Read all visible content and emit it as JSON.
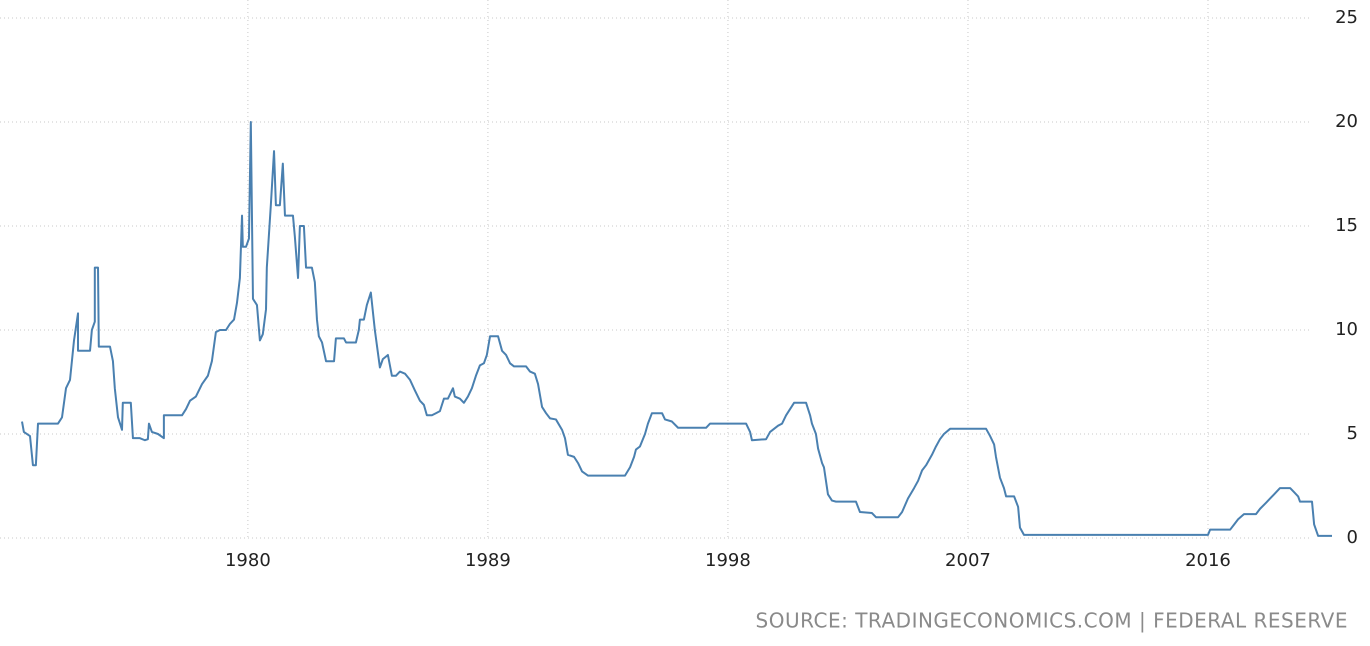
{
  "chart_data": {
    "type": "line",
    "color": "#4a80b0",
    "grid": true,
    "source": "SOURCE: TRADINGECONOMICS.COM | FEDERAL RESERVE",
    "xlim": [
      1971.53,
      2020.65
    ],
    "xticks": [
      1980,
      1989,
      1998,
      2007,
      2016
    ],
    "ylim": [
      0,
      25
    ],
    "yticks": [
      0,
      5,
      10,
      15,
      20,
      25
    ],
    "x": [
      1971.53,
      1971.6,
      1971.83,
      1971.94,
      1972.05,
      1972.13,
      1972.88,
      1973.03,
      1973.18,
      1973.33,
      1973.48,
      1973.63,
      1973.63,
      1974.08,
      1974.15,
      1974.26,
      1974.26,
      1974.38,
      1974.41,
      1974.83,
      1974.94,
      1975.01,
      1975.13,
      1975.28,
      1975.31,
      1975.61,
      1975.69,
      1975.95,
      1976.14,
      1976.25,
      1976.29,
      1976.4,
      1976.63,
      1976.85,
      1976.85,
      1977.53,
      1977.68,
      1977.83,
      1978.05,
      1978.28,
      1978.5,
      1978.65,
      1978.8,
      1978.95,
      1979.18,
      1979.33,
      1979.48,
      1979.59,
      1979.7,
      1979.78,
      1979.81,
      1979.93,
      1980.04,
      1980.11,
      1980.19,
      1980.34,
      1980.45,
      1980.56,
      1980.68,
      1980.71,
      1980.86,
      1980.98,
      1981.05,
      1981.2,
      1981.31,
      1981.39,
      1981.69,
      1981.76,
      1981.88,
      1981.95,
      1982.1,
      1982.18,
      1982.4,
      1982.51,
      1982.59,
      1982.66,
      1982.78,
      1982.93,
      1983.23,
      1983.3,
      1983.6,
      1983.68,
      1984.05,
      1984.16,
      1984.2,
      1984.35,
      1984.46,
      1984.61,
      1984.76,
      1984.95,
      1985.06,
      1985.25,
      1985.4,
      1985.55,
      1985.7,
      1985.89,
      1986.08,
      1986.26,
      1986.45,
      1986.6,
      1986.71,
      1986.9,
      1987.05,
      1987.2,
      1987.35,
      1987.5,
      1987.69,
      1987.76,
      1987.95,
      1988.1,
      1988.25,
      1988.4,
      1988.55,
      1988.7,
      1988.85,
      1988.96,
      1989.08,
      1989.38,
      1989.53,
      1989.68,
      1989.83,
      1989.98,
      1990.43,
      1990.58,
      1990.76,
      1990.88,
      1991.03,
      1991.18,
      1991.33,
      1991.55,
      1991.78,
      1991.89,
      1992.0,
      1992.23,
      1992.38,
      1992.53,
      1992.75,
      1994.14,
      1994.33,
      1994.48,
      1994.55,
      1994.7,
      1994.89,
      1995.0,
      1995.15,
      1995.53,
      1995.64,
      1995.9,
      1996.13,
      1997.18,
      1997.33,
      1998.68,
      1998.83,
      1998.9,
      1999.43,
      1999.58,
      1999.88,
      2000.03,
      2000.18,
      2000.33,
      2000.48,
      2000.93,
      2001.08,
      2001.15,
      2001.3,
      2001.38,
      2001.53,
      2001.6,
      2001.75,
      2001.9,
      2002.05,
      2002.8,
      2002.95,
      2003.4,
      2003.55,
      2004.38,
      2004.53,
      2004.75,
      2004.98,
      2005.13,
      2005.28,
      2005.43,
      2005.65,
      2005.8,
      2005.95,
      2006.1,
      2006.33,
      2007.68,
      2007.83,
      2007.98,
      2008.05,
      2008.2,
      2008.35,
      2008.43,
      2008.73,
      2008.88,
      2008.95,
      2009.1,
      2016.0,
      2016.08,
      2016.83,
      2016.98,
      2017.13,
      2017.35,
      2017.8,
      2017.95,
      2018.18,
      2018.33,
      2018.48,
      2018.7,
      2019.08,
      2019.23,
      2019.38,
      2019.45,
      2019.9,
      2019.98,
      2020.13,
      2020.65
    ],
    "values": [
      5.6,
      5.1,
      4.9,
      3.5,
      3.5,
      5.5,
      5.5,
      5.8,
      7.2,
      7.6,
      9.5,
      10.8,
      9.0,
      9.0,
      10.0,
      10.4,
      13.0,
      13.0,
      9.2,
      9.2,
      8.5,
      7.2,
      5.8,
      5.2,
      6.5,
      6.5,
      4.8,
      4.8,
      4.7,
      4.75,
      5.5,
      5.1,
      5.0,
      4.8,
      5.9,
      5.9,
      6.2,
      6.6,
      6.8,
      7.4,
      7.8,
      8.5,
      9.9,
      10.0,
      10.0,
      10.3,
      10.5,
      11.3,
      12.5,
      15.5,
      14.0,
      14.0,
      14.4,
      20.0,
      11.5,
      11.2,
      9.5,
      9.8,
      11.0,
      13.0,
      16.0,
      18.6,
      16.0,
      16.0,
      18.0,
      15.5,
      15.5,
      14.5,
      12.5,
      15.0,
      15.0,
      13.0,
      13.0,
      12.3,
      10.5,
      9.7,
      9.4,
      8.5,
      8.5,
      9.6,
      9.6,
      9.4,
      9.4,
      10.0,
      10.5,
      10.5,
      11.2,
      11.8,
      10.0,
      8.2,
      8.6,
      8.8,
      7.8,
      7.8,
      8.0,
      7.9,
      7.6,
      7.1,
      6.6,
      6.4,
      5.9,
      5.9,
      6.0,
      6.1,
      6.7,
      6.7,
      7.2,
      6.8,
      6.7,
      6.5,
      6.8,
      7.2,
      7.8,
      8.3,
      8.4,
      8.8,
      9.7,
      9.7,
      9.0,
      8.8,
      8.4,
      8.25,
      8.25,
      8.0,
      7.9,
      7.4,
      6.3,
      6.0,
      5.75,
      5.7,
      5.2,
      4.8,
      4.0,
      3.9,
      3.6,
      3.2,
      3.0,
      3.0,
      3.4,
      3.9,
      4.25,
      4.4,
      5.0,
      5.5,
      6.0,
      6.0,
      5.7,
      5.6,
      5.3,
      5.3,
      5.5,
      5.5,
      5.1,
      4.7,
      4.75,
      5.1,
      5.4,
      5.5,
      5.9,
      6.2,
      6.5,
      6.5,
      5.9,
      5.5,
      5.0,
      4.3,
      3.6,
      3.4,
      2.1,
      1.8,
      1.75,
      1.75,
      1.25,
      1.2,
      1.0,
      1.0,
      1.25,
      1.9,
      2.4,
      2.75,
      3.25,
      3.5,
      4.0,
      4.4,
      4.75,
      5.0,
      5.25,
      5.25,
      4.9,
      4.5,
      3.9,
      2.9,
      2.4,
      2.0,
      2.0,
      1.5,
      0.5,
      0.15,
      0.15,
      0.4,
      0.4,
      0.65,
      0.9,
      1.15,
      1.15,
      1.4,
      1.7,
      1.9,
      2.1,
      2.4,
      2.4,
      2.2,
      2.0,
      1.75,
      1.75,
      0.65,
      0.1,
      0.1
    ]
  }
}
